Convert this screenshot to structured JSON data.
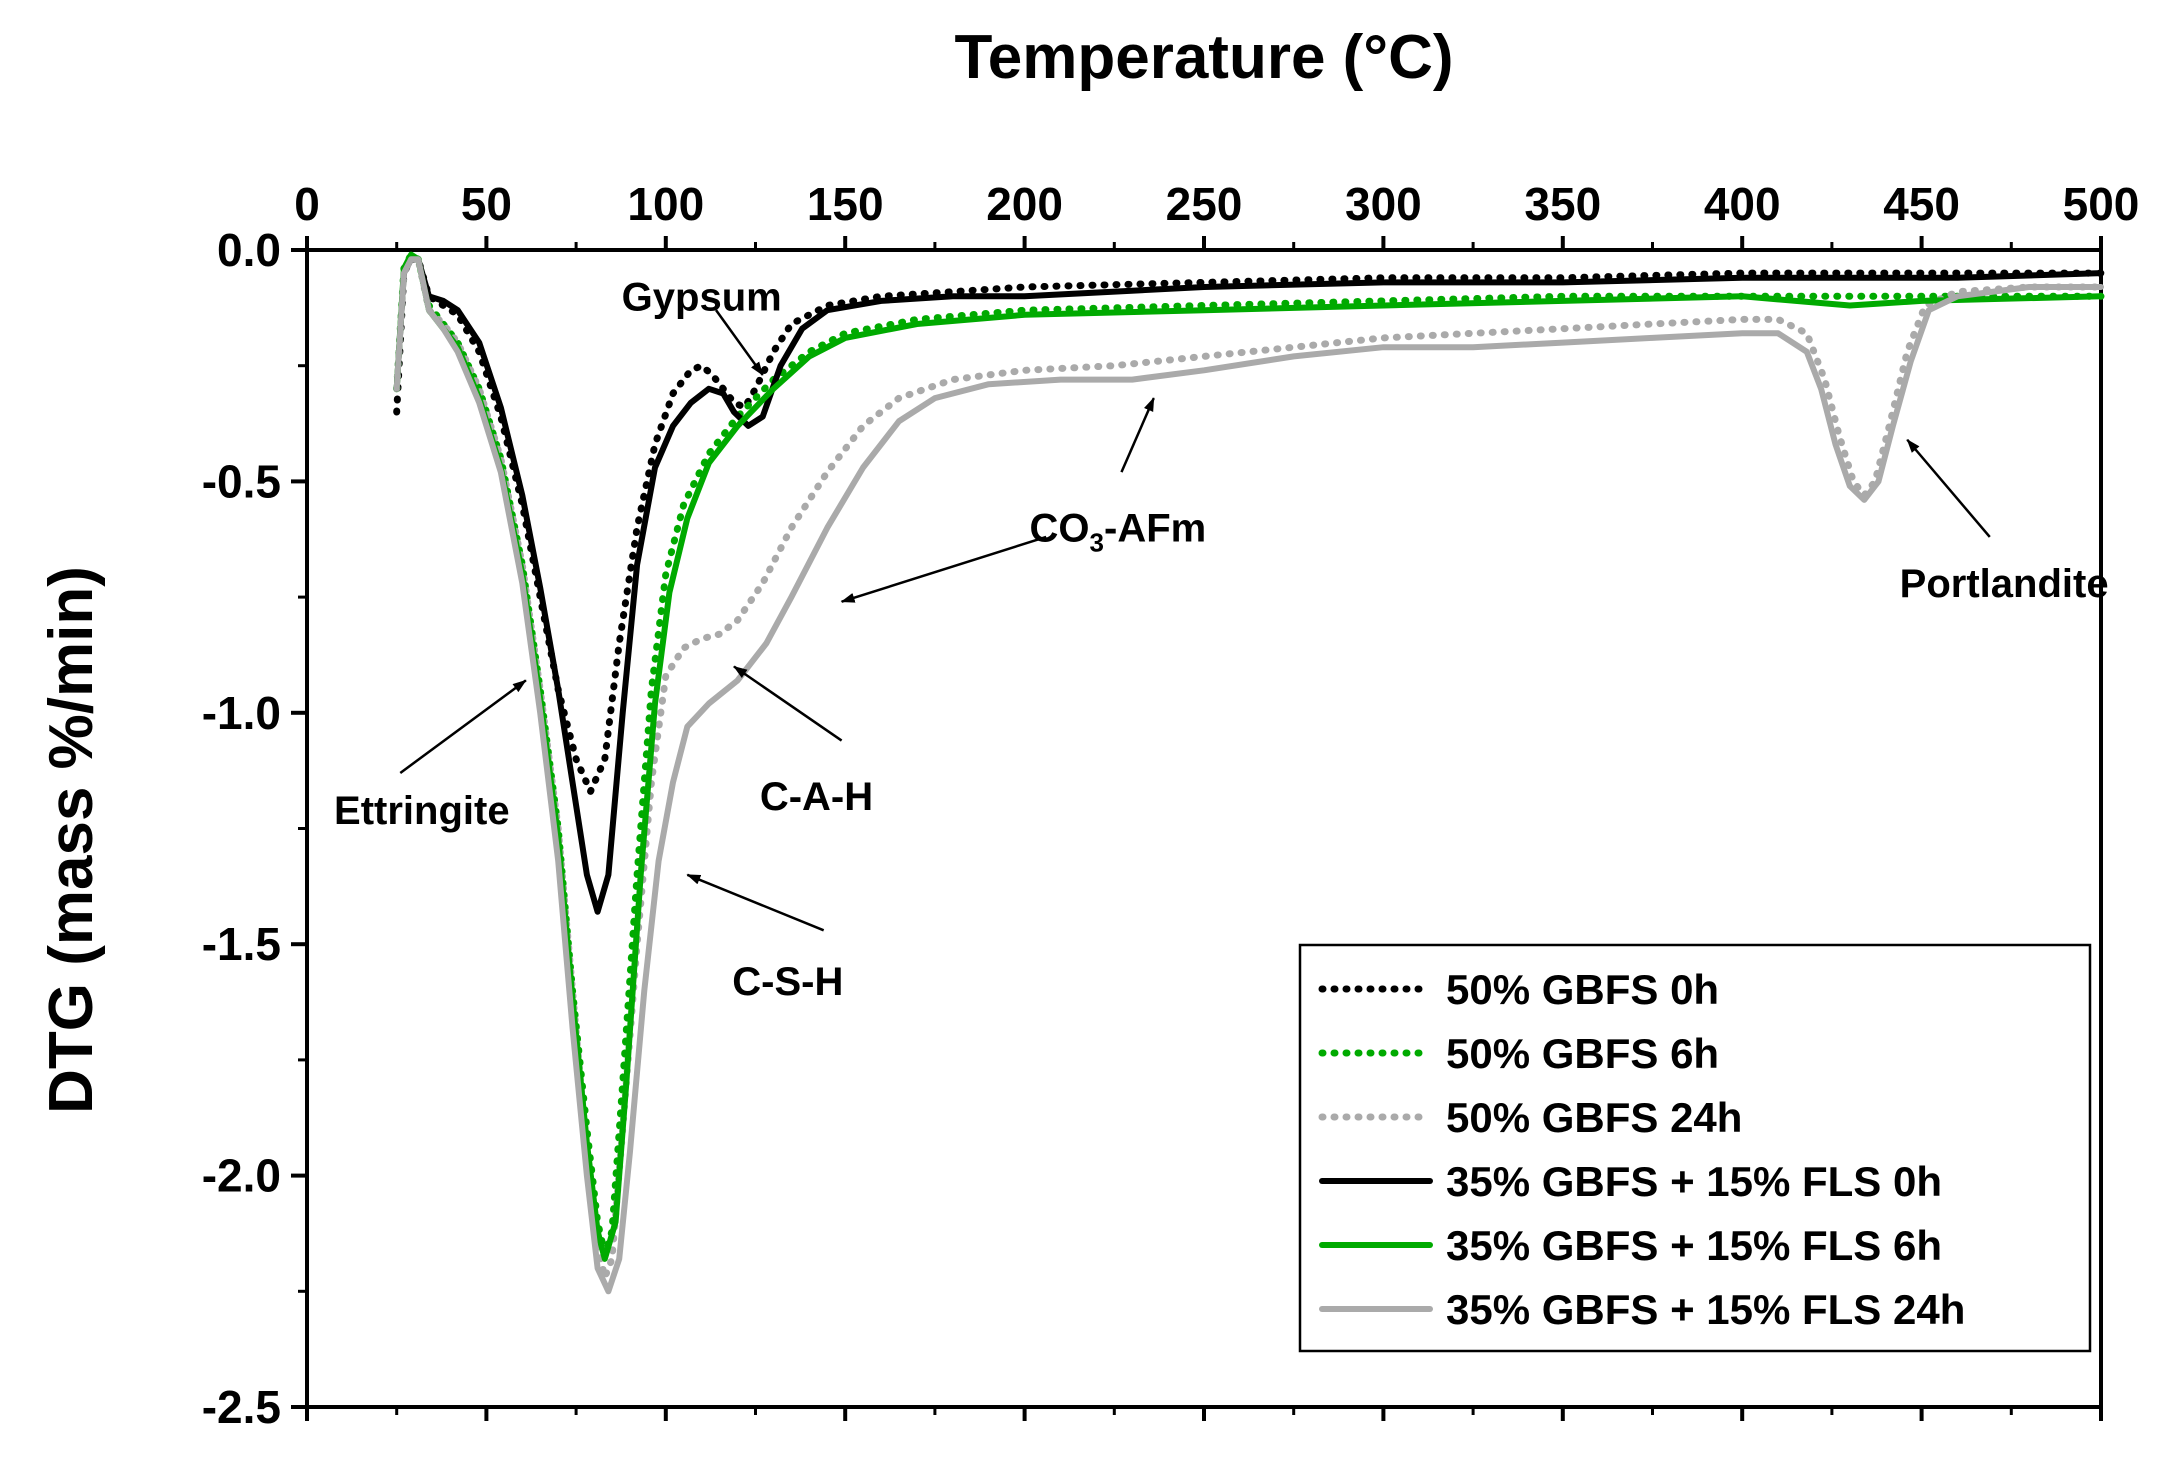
{
  "chart_data": {
    "type": "line",
    "xlabel": "Temperature (°C)",
    "ylabel": "DTG (mass %/min)",
    "xlim": [
      0,
      500
    ],
    "ylim": [
      -2.5,
      0.0
    ],
    "xticks": [
      "0",
      "50",
      "100",
      "150",
      "200",
      "250",
      "300",
      "350",
      "400",
      "450",
      "500"
    ],
    "yticks": [
      "0.0",
      "-0.5",
      "-1.0",
      "-1.5",
      "-2.0",
      "-2.5"
    ],
    "grid": false,
    "legend_position": "bottom-right",
    "series": [
      {
        "name": "50% GBFS 0h",
        "color": "#000000",
        "style": "dotted",
        "points": [
          [
            25,
            -0.35
          ],
          [
            27,
            -0.05
          ],
          [
            29,
            -0.02
          ],
          [
            31,
            -0.02
          ],
          [
            34,
            -0.1
          ],
          [
            38,
            -0.12
          ],
          [
            42,
            -0.14
          ],
          [
            48,
            -0.22
          ],
          [
            54,
            -0.36
          ],
          [
            60,
            -0.55
          ],
          [
            65,
            -0.75
          ],
          [
            70,
            -0.95
          ],
          [
            75,
            -1.1
          ],
          [
            79,
            -1.17
          ],
          [
            83,
            -1.1
          ],
          [
            87,
            -0.85
          ],
          [
            92,
            -0.6
          ],
          [
            97,
            -0.42
          ],
          [
            102,
            -0.31
          ],
          [
            107,
            -0.26
          ],
          [
            110,
            -0.25
          ],
          [
            113,
            -0.27
          ],
          [
            116,
            -0.3
          ],
          [
            119,
            -0.33
          ],
          [
            122,
            -0.34
          ],
          [
            125,
            -0.3
          ],
          [
            130,
            -0.22
          ],
          [
            135,
            -0.16
          ],
          [
            145,
            -0.12
          ],
          [
            160,
            -0.1
          ],
          [
            180,
            -0.09
          ],
          [
            200,
            -0.08
          ],
          [
            250,
            -0.07
          ],
          [
            300,
            -0.06
          ],
          [
            350,
            -0.06
          ],
          [
            400,
            -0.05
          ],
          [
            430,
            -0.05
          ],
          [
            460,
            -0.05
          ],
          [
            500,
            -0.05
          ]
        ]
      },
      {
        "name": "50% GBFS 6h",
        "color": "#00aa00",
        "style": "dotted",
        "points": [
          [
            25,
            -0.3
          ],
          [
            27,
            -0.04
          ],
          [
            29,
            -0.01
          ],
          [
            31,
            -0.02
          ],
          [
            34,
            -0.12
          ],
          [
            38,
            -0.16
          ],
          [
            42,
            -0.2
          ],
          [
            48,
            -0.3
          ],
          [
            54,
            -0.45
          ],
          [
            60,
            -0.68
          ],
          [
            65,
            -0.95
          ],
          [
            70,
            -1.25
          ],
          [
            74,
            -1.6
          ],
          [
            78,
            -1.9
          ],
          [
            81,
            -2.1
          ],
          [
            83,
            -2.17
          ],
          [
            85,
            -2.12
          ],
          [
            88,
            -1.8
          ],
          [
            92,
            -1.35
          ],
          [
            96,
            -0.95
          ],
          [
            100,
            -0.7
          ],
          [
            105,
            -0.55
          ],
          [
            112,
            -0.44
          ],
          [
            120,
            -0.36
          ],
          [
            130,
            -0.28
          ],
          [
            140,
            -0.22
          ],
          [
            150,
            -0.18
          ],
          [
            170,
            -0.15
          ],
          [
            200,
            -0.13
          ],
          [
            250,
            -0.12
          ],
          [
            300,
            -0.11
          ],
          [
            350,
            -0.1
          ],
          [
            400,
            -0.1
          ],
          [
            450,
            -0.1
          ],
          [
            500,
            -0.1
          ]
        ]
      },
      {
        "name": "50% GBFS 24h",
        "color": "#aaaaaa",
        "style": "dotted",
        "points": [
          [
            25,
            -0.3
          ],
          [
            27,
            -0.05
          ],
          [
            29,
            -0.02
          ],
          [
            31,
            -0.02
          ],
          [
            34,
            -0.13
          ],
          [
            38,
            -0.16
          ],
          [
            42,
            -0.2
          ],
          [
            48,
            -0.3
          ],
          [
            54,
            -0.45
          ],
          [
            60,
            -0.68
          ],
          [
            65,
            -0.95
          ],
          [
            70,
            -1.25
          ],
          [
            74,
            -1.6
          ],
          [
            78,
            -1.95
          ],
          [
            81,
            -2.15
          ],
          [
            83,
            -2.22
          ],
          [
            85,
            -2.18
          ],
          [
            88,
            -1.9
          ],
          [
            92,
            -1.5
          ],
          [
            96,
            -1.15
          ],
          [
            100,
            -0.92
          ],
          [
            105,
            -0.86
          ],
          [
            110,
            -0.84
          ],
          [
            115,
            -0.83
          ],
          [
            120,
            -0.8
          ],
          [
            127,
            -0.72
          ],
          [
            135,
            -0.6
          ],
          [
            145,
            -0.48
          ],
          [
            155,
            -0.38
          ],
          [
            165,
            -0.32
          ],
          [
            180,
            -0.28
          ],
          [
            200,
            -0.26
          ],
          [
            225,
            -0.25
          ],
          [
            250,
            -0.23
          ],
          [
            275,
            -0.21
          ],
          [
            300,
            -0.19
          ],
          [
            325,
            -0.18
          ],
          [
            350,
            -0.17
          ],
          [
            375,
            -0.16
          ],
          [
            400,
            -0.15
          ],
          [
            410,
            -0.15
          ],
          [
            418,
            -0.18
          ],
          [
            423,
            -0.28
          ],
          [
            427,
            -0.4
          ],
          [
            431,
            -0.5
          ],
          [
            434,
            -0.53
          ],
          [
            437,
            -0.5
          ],
          [
            441,
            -0.38
          ],
          [
            446,
            -0.22
          ],
          [
            451,
            -0.12
          ],
          [
            460,
            -0.09
          ],
          [
            480,
            -0.08
          ],
          [
            500,
            -0.08
          ]
        ]
      },
      {
        "name": "35% GBFS + 15% FLS 0h",
        "color": "#000000",
        "style": "solid",
        "points": [
          [
            25,
            -0.3
          ],
          [
            27,
            -0.05
          ],
          [
            29,
            -0.02
          ],
          [
            31,
            -0.02
          ],
          [
            34,
            -0.1
          ],
          [
            38,
            -0.11
          ],
          [
            42,
            -0.13
          ],
          [
            48,
            -0.2
          ],
          [
            54,
            -0.34
          ],
          [
            60,
            -0.53
          ],
          [
            65,
            -0.73
          ],
          [
            70,
            -0.95
          ],
          [
            74,
            -1.15
          ],
          [
            78,
            -1.35
          ],
          [
            81,
            -1.43
          ],
          [
            84,
            -1.35
          ],
          [
            88,
            -1.0
          ],
          [
            92,
            -0.68
          ],
          [
            97,
            -0.47
          ],
          [
            102,
            -0.38
          ],
          [
            107,
            -0.33
          ],
          [
            112,
            -0.3
          ],
          [
            116,
            -0.31
          ],
          [
            119,
            -0.35
          ],
          [
            123,
            -0.38
          ],
          [
            127,
            -0.36
          ],
          [
            132,
            -0.25
          ],
          [
            138,
            -0.17
          ],
          [
            145,
            -0.13
          ],
          [
            160,
            -0.11
          ],
          [
            180,
            -0.1
          ],
          [
            200,
            -0.1
          ],
          [
            250,
            -0.08
          ],
          [
            300,
            -0.07
          ],
          [
            350,
            -0.07
          ],
          [
            400,
            -0.06
          ],
          [
            430,
            -0.06
          ],
          [
            460,
            -0.06
          ],
          [
            500,
            -0.05
          ]
        ]
      },
      {
        "name": "35% GBFS + 15% FLS 6h",
        "color": "#00aa00",
        "style": "solid",
        "points": [
          [
            25,
            -0.3
          ],
          [
            27,
            -0.04
          ],
          [
            29,
            -0.01
          ],
          [
            31,
            -0.02
          ],
          [
            34,
            -0.13
          ],
          [
            38,
            -0.17
          ],
          [
            42,
            -0.21
          ],
          [
            48,
            -0.32
          ],
          [
            54,
            -0.47
          ],
          [
            60,
            -0.7
          ],
          [
            65,
            -0.97
          ],
          [
            70,
            -1.27
          ],
          [
            74,
            -1.62
          ],
          [
            78,
            -1.93
          ],
          [
            81,
            -2.12
          ],
          [
            83,
            -2.18
          ],
          [
            86,
            -2.1
          ],
          [
            89,
            -1.8
          ],
          [
            93,
            -1.35
          ],
          [
            97,
            -0.98
          ],
          [
            101,
            -0.74
          ],
          [
            106,
            -0.58
          ],
          [
            112,
            -0.46
          ],
          [
            120,
            -0.38
          ],
          [
            130,
            -0.3
          ],
          [
            140,
            -0.23
          ],
          [
            150,
            -0.19
          ],
          [
            170,
            -0.16
          ],
          [
            200,
            -0.14
          ],
          [
            250,
            -0.13
          ],
          [
            300,
            -0.12
          ],
          [
            350,
            -0.11
          ],
          [
            400,
            -0.1
          ],
          [
            430,
            -0.12
          ],
          [
            450,
            -0.11
          ],
          [
            500,
            -0.1
          ]
        ]
      },
      {
        "name": "35% GBFS + 15% FLS 24h",
        "color": "#aaaaaa",
        "style": "solid",
        "points": [
          [
            25,
            -0.3
          ],
          [
            27,
            -0.05
          ],
          [
            29,
            -0.02
          ],
          [
            31,
            -0.02
          ],
          [
            34,
            -0.13
          ],
          [
            38,
            -0.17
          ],
          [
            42,
            -0.22
          ],
          [
            48,
            -0.33
          ],
          [
            54,
            -0.48
          ],
          [
            60,
            -0.72
          ],
          [
            65,
            -1.0
          ],
          [
            70,
            -1.32
          ],
          [
            74,
            -1.68
          ],
          [
            78,
            -2.0
          ],
          [
            81,
            -2.2
          ],
          [
            84,
            -2.25
          ],
          [
            87,
            -2.18
          ],
          [
            90,
            -1.95
          ],
          [
            94,
            -1.6
          ],
          [
            98,
            -1.32
          ],
          [
            102,
            -1.15
          ],
          [
            106,
            -1.03
          ],
          [
            112,
            -0.98
          ],
          [
            120,
            -0.93
          ],
          [
            128,
            -0.85
          ],
          [
            135,
            -0.75
          ],
          [
            145,
            -0.6
          ],
          [
            155,
            -0.47
          ],
          [
            165,
            -0.37
          ],
          [
            175,
            -0.32
          ],
          [
            190,
            -0.29
          ],
          [
            210,
            -0.28
          ],
          [
            230,
            -0.28
          ],
          [
            250,
            -0.26
          ],
          [
            275,
            -0.23
          ],
          [
            300,
            -0.21
          ],
          [
            325,
            -0.21
          ],
          [
            350,
            -0.2
          ],
          [
            375,
            -0.19
          ],
          [
            400,
            -0.18
          ],
          [
            410,
            -0.18
          ],
          [
            418,
            -0.22
          ],
          [
            422,
            -0.3
          ],
          [
            426,
            -0.42
          ],
          [
            430,
            -0.51
          ],
          [
            434,
            -0.54
          ],
          [
            438,
            -0.5
          ],
          [
            442,
            -0.38
          ],
          [
            447,
            -0.24
          ],
          [
            452,
            -0.13
          ],
          [
            460,
            -0.1
          ],
          [
            480,
            -0.08
          ],
          [
            500,
            -0.08
          ]
        ]
      }
    ],
    "annotations": [
      {
        "label": "Gypsum",
        "sub": "",
        "suffix": "",
        "text_x": 110,
        "text_y": -0.1,
        "arrow_from": [
          114,
          -0.13
        ],
        "arrow_to": [
          127,
          -0.27
        ]
      },
      {
        "label": "Ettringite",
        "sub": "",
        "suffix": "",
        "text_x": 32,
        "text_y": -1.21,
        "arrow_from": [
          26,
          -1.13
        ],
        "arrow_to": [
          61,
          -0.93
        ]
      },
      {
        "label": "CO",
        "sub": "3",
        "suffix": "-AFm",
        "text_x": 226,
        "text_y": -0.6,
        "arrow_from": [
          206,
          -0.62
        ],
        "arrow_to": [
          149,
          -0.76
        ]
      },
      {
        "label": "C-A-H",
        "sub": "",
        "suffix": "",
        "text_x": 142,
        "text_y": -1.18,
        "arrow_from": [
          149,
          -1.06
        ],
        "arrow_to": [
          119,
          -0.9
        ]
      },
      {
        "label": "C-S-H",
        "sub": "",
        "suffix": "",
        "text_x": 134,
        "text_y": -1.58,
        "arrow_from": [
          144,
          -1.47
        ],
        "arrow_to": [
          106,
          -1.35
        ]
      },
      {
        "label": "",
        "sub": "",
        "suffix": "",
        "text_x": 0,
        "text_y": 0,
        "arrow_from": [
          227,
          -0.48
        ],
        "arrow_to": [
          236,
          -0.32
        ]
      },
      {
        "label": "Portlandite",
        "sub": "",
        "suffix": "",
        "text_x": 473,
        "text_y": -0.72,
        "arrow_from": [
          469,
          -0.62
        ],
        "arrow_to": [
          446,
          -0.41
        ]
      }
    ]
  }
}
